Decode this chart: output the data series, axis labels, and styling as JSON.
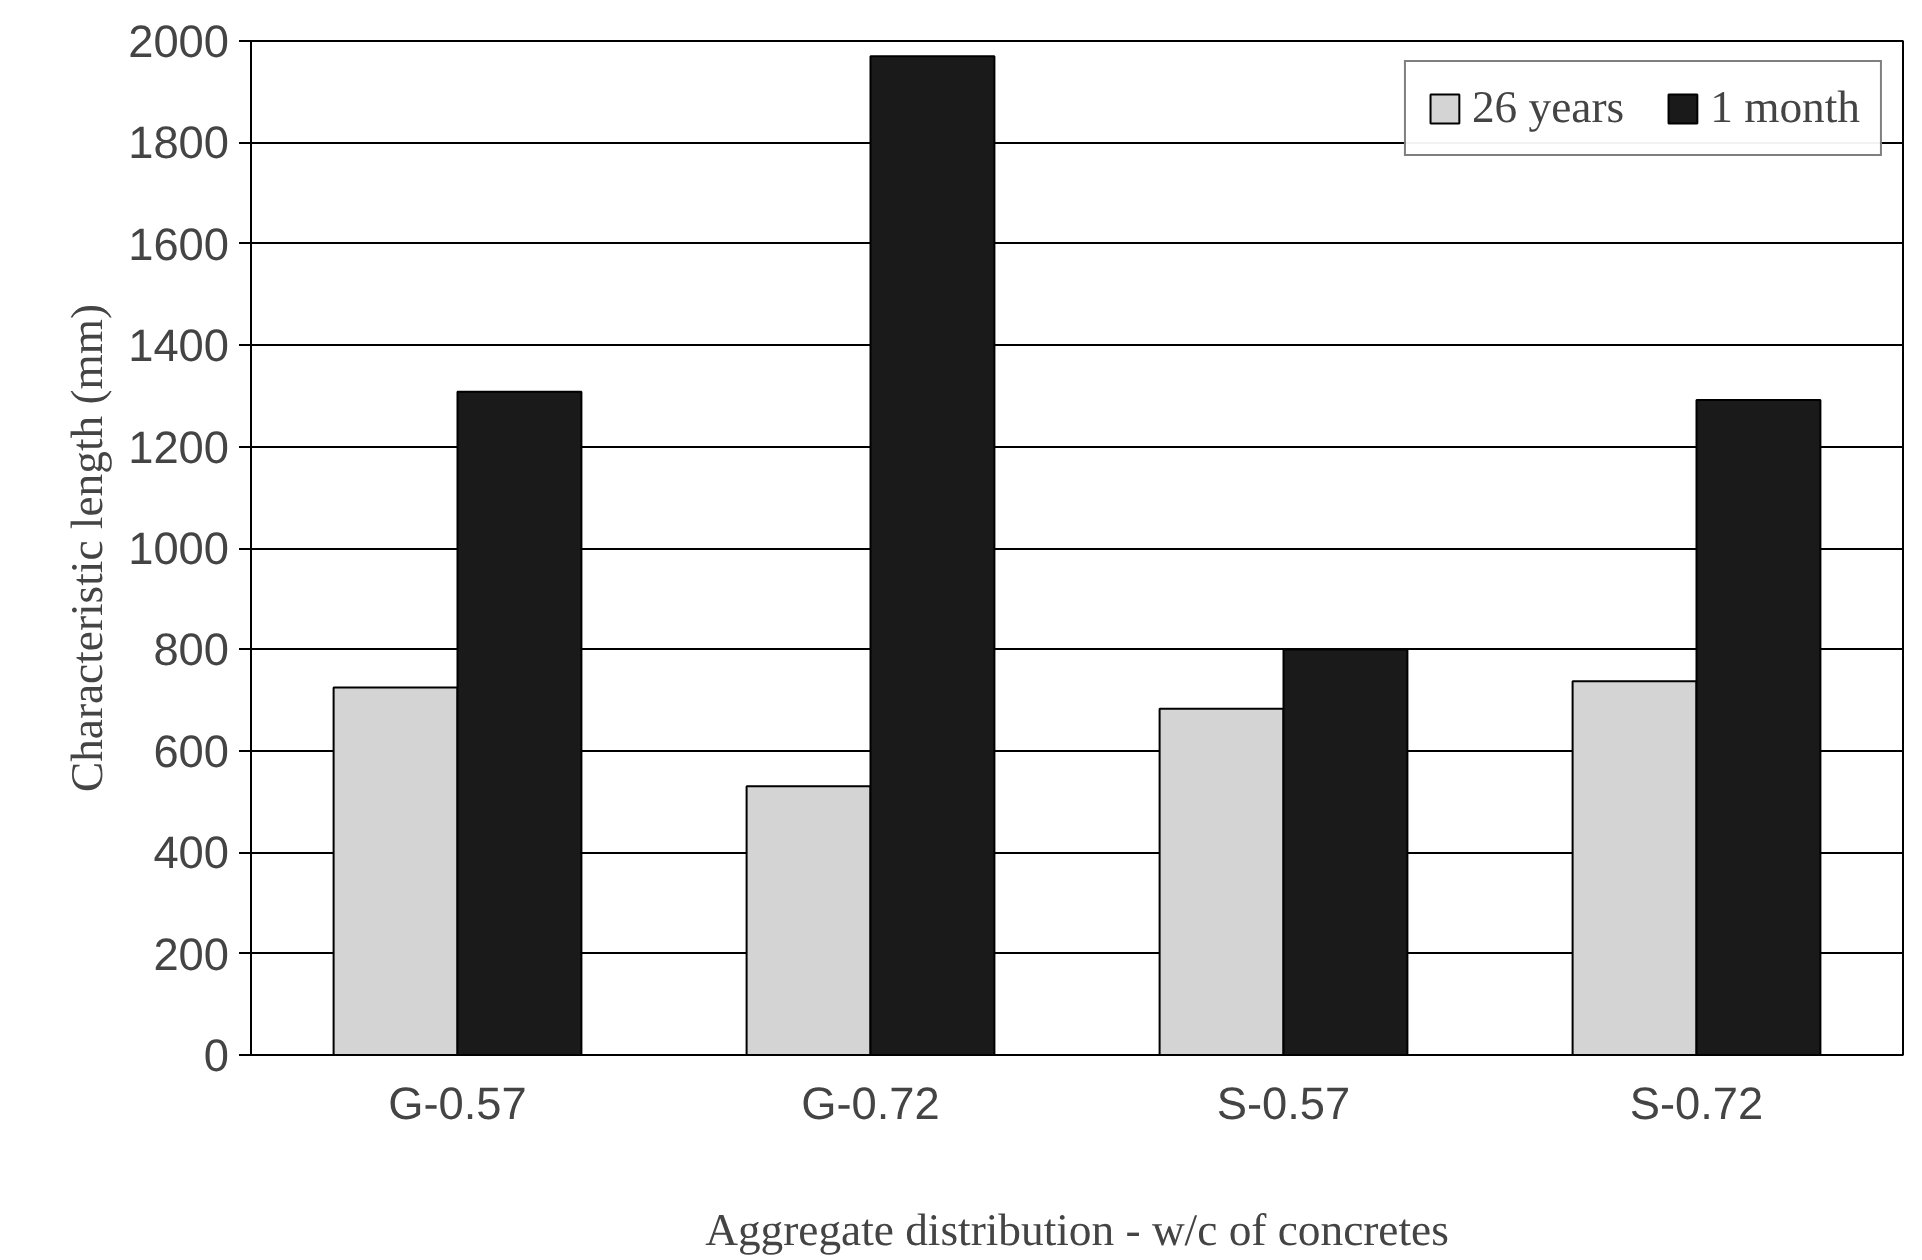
{
  "chart_data": {
    "type": "bar",
    "xlabel": "Aggregate distribution - w/c of concretes",
    "ylabel": "Characteristic length (mm)",
    "categories": [
      "G-0.57",
      "G-0.72",
      "S-0.57",
      "S-0.72"
    ],
    "series": [
      {
        "name": "26 years",
        "color": "#d4d4d4",
        "values": [
          725,
          530,
          683,
          737
        ]
      },
      {
        "name": "1 month",
        "color": "#1a1a1a",
        "values": [
          1308,
          1970,
          800,
          1292
        ]
      }
    ],
    "ylim": [
      0,
      2000
    ],
    "yticks": [
      0,
      200,
      400,
      600,
      800,
      1000,
      1200,
      1400,
      1600,
      1800,
      2000
    ],
    "grid": "y",
    "legend": "top right"
  }
}
